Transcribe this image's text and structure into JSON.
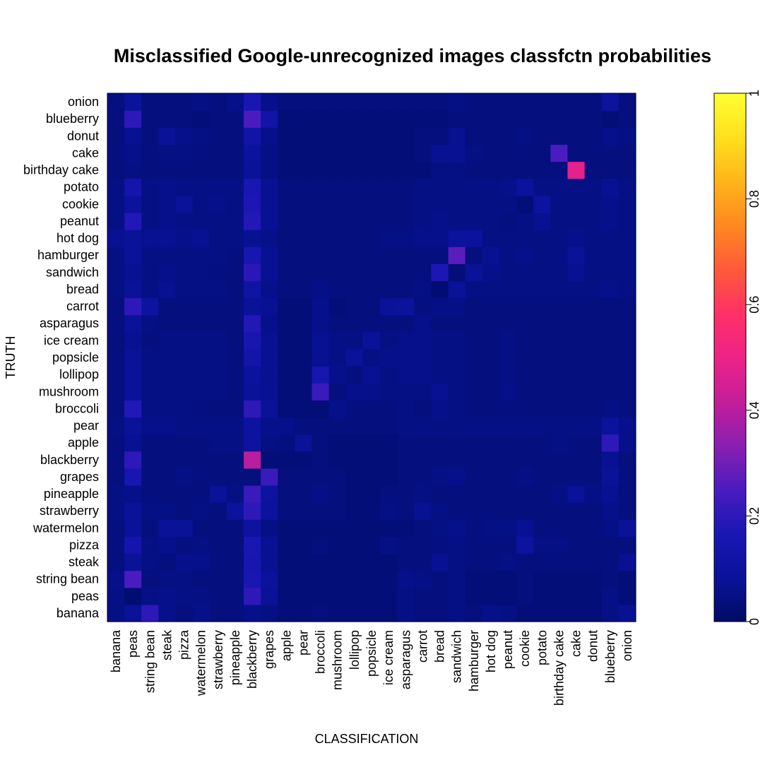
{
  "chart_data": {
    "type": "heatmap",
    "title": "Misclassified Google-unrecognized images classfctn probabilities",
    "xlabel": "CLASSIFICATION",
    "ylabel": "TRUTH",
    "x_categories": [
      "banana",
      "peas",
      "string bean",
      "steak",
      "pizza",
      "watermelon",
      "strawberry",
      "pineapple",
      "blackberry",
      "grapes",
      "apple",
      "pear",
      "broccoli",
      "mushroom",
      "lollipop",
      "popsicle",
      "ice cream",
      "asparagus",
      "carrot",
      "bread",
      "sandwich",
      "hamburger",
      "hot dog",
      "peanut",
      "cookie",
      "potato",
      "birthday cake",
      "cake",
      "donut",
      "blueberry",
      "onion"
    ],
    "y_categories": [
      "banana",
      "peas",
      "string bean",
      "steak",
      "pizza",
      "watermelon",
      "strawberry",
      "pineapple",
      "grapes",
      "blackberry",
      "apple",
      "pear",
      "broccoli",
      "mushroom",
      "lollipop",
      "popsicle",
      "ice cream",
      "asparagus",
      "carrot",
      "bread",
      "sandwich",
      "hamburger",
      "hot dog",
      "peanut",
      "cookie",
      "potato",
      "birthday cake",
      "cake",
      "donut",
      "blueberry",
      "onion"
    ],
    "values": [
      [
        0.05,
        0.08,
        0.2,
        0.06,
        0.04,
        0.06,
        0.04,
        0.04,
        0.06,
        0.05,
        0.03,
        0.03,
        0.04,
        0.03,
        0.03,
        0.03,
        0.03,
        0.05,
        0.04,
        0.04,
        0.05,
        0.04,
        0.06,
        0.05,
        0.03,
        0.03,
        0.03,
        0.03,
        0.03,
        0.05,
        0.07
      ],
      [
        0.05,
        0.02,
        0.05,
        0.06,
        0.05,
        0.05,
        0.04,
        0.04,
        0.2,
        0.08,
        0.03,
        0.03,
        0.03,
        0.03,
        0.03,
        0.03,
        0.03,
        0.05,
        0.04,
        0.04,
        0.05,
        0.03,
        0.03,
        0.03,
        0.04,
        0.03,
        0.03,
        0.03,
        0.03,
        0.05,
        0.03
      ],
      [
        0.06,
        0.25,
        0.04,
        0.05,
        0.05,
        0.04,
        0.04,
        0.04,
        0.16,
        0.09,
        0.03,
        0.03,
        0.03,
        0.03,
        0.03,
        0.03,
        0.03,
        0.06,
        0.05,
        0.04,
        0.05,
        0.03,
        0.03,
        0.03,
        0.04,
        0.03,
        0.03,
        0.03,
        0.03,
        0.04,
        0.03
      ],
      [
        0.04,
        0.08,
        0.05,
        0.04,
        0.06,
        0.06,
        0.04,
        0.04,
        0.15,
        0.07,
        0.03,
        0.03,
        0.03,
        0.03,
        0.03,
        0.03,
        0.03,
        0.04,
        0.04,
        0.07,
        0.05,
        0.04,
        0.04,
        0.05,
        0.04,
        0.04,
        0.04,
        0.04,
        0.04,
        0.04,
        0.07
      ],
      [
        0.04,
        0.14,
        0.05,
        0.06,
        0.04,
        0.05,
        0.04,
        0.04,
        0.16,
        0.07,
        0.03,
        0.03,
        0.04,
        0.03,
        0.03,
        0.03,
        0.05,
        0.04,
        0.04,
        0.04,
        0.05,
        0.04,
        0.04,
        0.04,
        0.1,
        0.05,
        0.05,
        0.04,
        0.04,
        0.04,
        0.04
      ],
      [
        0.04,
        0.08,
        0.04,
        0.08,
        0.08,
        0.04,
        0.04,
        0.04,
        0.1,
        0.05,
        0.03,
        0.03,
        0.03,
        0.03,
        0.03,
        0.03,
        0.03,
        0.03,
        0.04,
        0.05,
        0.06,
        0.04,
        0.05,
        0.05,
        0.07,
        0.04,
        0.04,
        0.04,
        0.04,
        0.05,
        0.08
      ],
      [
        0.05,
        0.08,
        0.05,
        0.05,
        0.04,
        0.05,
        0.04,
        0.09,
        0.2,
        0.09,
        0.04,
        0.04,
        0.04,
        0.04,
        0.03,
        0.03,
        0.05,
        0.04,
        0.07,
        0.05,
        0.04,
        0.04,
        0.04,
        0.04,
        0.04,
        0.04,
        0.04,
        0.04,
        0.04,
        0.06,
        0.04
      ],
      [
        0.05,
        0.06,
        0.04,
        0.04,
        0.04,
        0.04,
        0.08,
        0.05,
        0.22,
        0.1,
        0.04,
        0.04,
        0.05,
        0.04,
        0.03,
        0.03,
        0.04,
        0.04,
        0.05,
        0.04,
        0.04,
        0.04,
        0.04,
        0.04,
        0.04,
        0.04,
        0.05,
        0.08,
        0.05,
        0.07,
        0.04
      ],
      [
        0.04,
        0.15,
        0.04,
        0.04,
        0.05,
        0.04,
        0.04,
        0.04,
        0.04,
        0.22,
        0.04,
        0.04,
        0.04,
        0.04,
        0.03,
        0.03,
        0.03,
        0.04,
        0.04,
        0.05,
        0.06,
        0.04,
        0.04,
        0.04,
        0.05,
        0.04,
        0.04,
        0.04,
        0.04,
        0.08,
        0.04
      ],
      [
        0.04,
        0.2,
        0.04,
        0.04,
        0.04,
        0.04,
        0.04,
        0.04,
        0.4,
        0.03,
        0.03,
        0.03,
        0.04,
        0.03,
        0.03,
        0.03,
        0.03,
        0.04,
        0.04,
        0.04,
        0.04,
        0.04,
        0.04,
        0.04,
        0.04,
        0.04,
        0.04,
        0.04,
        0.04,
        0.07,
        0.04
      ],
      [
        0.04,
        0.07,
        0.04,
        0.04,
        0.04,
        0.04,
        0.05,
        0.05,
        0.1,
        0.05,
        0.04,
        0.08,
        0.04,
        0.03,
        0.03,
        0.03,
        0.03,
        0.04,
        0.04,
        0.04,
        0.04,
        0.04,
        0.04,
        0.04,
        0.04,
        0.04,
        0.05,
        0.04,
        0.04,
        0.2,
        0.06
      ],
      [
        0.05,
        0.08,
        0.06,
        0.06,
        0.05,
        0.05,
        0.05,
        0.05,
        0.1,
        0.06,
        0.06,
        0.04,
        0.04,
        0.04,
        0.04,
        0.04,
        0.04,
        0.05,
        0.05,
        0.05,
        0.05,
        0.05,
        0.05,
        0.05,
        0.05,
        0.05,
        0.05,
        0.05,
        0.05,
        0.09,
        0.06
      ],
      [
        0.04,
        0.18,
        0.05,
        0.05,
        0.05,
        0.04,
        0.04,
        0.04,
        0.2,
        0.08,
        0.03,
        0.03,
        0.03,
        0.06,
        0.04,
        0.04,
        0.04,
        0.05,
        0.04,
        0.06,
        0.05,
        0.04,
        0.04,
        0.04,
        0.04,
        0.04,
        0.04,
        0.04,
        0.04,
        0.05,
        0.04
      ],
      [
        0.04,
        0.08,
        0.05,
        0.05,
        0.05,
        0.05,
        0.05,
        0.04,
        0.08,
        0.07,
        0.03,
        0.03,
        0.22,
        0.04,
        0.06,
        0.06,
        0.05,
        0.05,
        0.05,
        0.07,
        0.05,
        0.04,
        0.04,
        0.06,
        0.04,
        0.04,
        0.04,
        0.04,
        0.04,
        0.04,
        0.04
      ],
      [
        0.04,
        0.08,
        0.05,
        0.05,
        0.05,
        0.05,
        0.05,
        0.04,
        0.09,
        0.07,
        0.03,
        0.03,
        0.15,
        0.06,
        0.04,
        0.07,
        0.05,
        0.06,
        0.06,
        0.05,
        0.05,
        0.04,
        0.04,
        0.05,
        0.04,
        0.04,
        0.04,
        0.04,
        0.04,
        0.04,
        0.04
      ],
      [
        0.04,
        0.08,
        0.05,
        0.05,
        0.05,
        0.05,
        0.05,
        0.04,
        0.13,
        0.07,
        0.03,
        0.03,
        0.07,
        0.05,
        0.08,
        0.05,
        0.06,
        0.06,
        0.06,
        0.05,
        0.05,
        0.04,
        0.04,
        0.05,
        0.04,
        0.04,
        0.04,
        0.04,
        0.04,
        0.04,
        0.04
      ],
      [
        0.04,
        0.07,
        0.04,
        0.05,
        0.05,
        0.05,
        0.05,
        0.04,
        0.15,
        0.07,
        0.03,
        0.03,
        0.07,
        0.05,
        0.05,
        0.08,
        0.05,
        0.06,
        0.06,
        0.05,
        0.05,
        0.04,
        0.04,
        0.05,
        0.04,
        0.04,
        0.04,
        0.04,
        0.04,
        0.04,
        0.04
      ],
      [
        0.04,
        0.08,
        0.05,
        0.04,
        0.04,
        0.04,
        0.04,
        0.04,
        0.18,
        0.06,
        0.03,
        0.03,
        0.06,
        0.04,
        0.04,
        0.04,
        0.04,
        0.04,
        0.06,
        0.04,
        0.04,
        0.04,
        0.04,
        0.04,
        0.04,
        0.04,
        0.04,
        0.04,
        0.04,
        0.04,
        0.04
      ],
      [
        0.04,
        0.2,
        0.1,
        0.04,
        0.04,
        0.04,
        0.04,
        0.04,
        0.08,
        0.07,
        0.03,
        0.03,
        0.06,
        0.03,
        0.04,
        0.04,
        0.08,
        0.09,
        0.04,
        0.05,
        0.05,
        0.04,
        0.04,
        0.04,
        0.04,
        0.04,
        0.04,
        0.04,
        0.04,
        0.04,
        0.04
      ],
      [
        0.05,
        0.08,
        0.05,
        0.07,
        0.05,
        0.05,
        0.05,
        0.04,
        0.11,
        0.06,
        0.04,
        0.04,
        0.05,
        0.04,
        0.04,
        0.04,
        0.04,
        0.04,
        0.05,
        0.02,
        0.08,
        0.05,
        0.05,
        0.05,
        0.05,
        0.05,
        0.05,
        0.05,
        0.05,
        0.06,
        0.05
      ],
      [
        0.05,
        0.07,
        0.05,
        0.06,
        0.05,
        0.05,
        0.04,
        0.04,
        0.19,
        0.07,
        0.04,
        0.04,
        0.04,
        0.04,
        0.04,
        0.04,
        0.04,
        0.04,
        0.04,
        0.17,
        0.03,
        0.08,
        0.06,
        0.05,
        0.05,
        0.05,
        0.05,
        0.07,
        0.05,
        0.05,
        0.05
      ],
      [
        0.05,
        0.08,
        0.05,
        0.05,
        0.05,
        0.05,
        0.05,
        0.04,
        0.15,
        0.07,
        0.04,
        0.04,
        0.04,
        0.04,
        0.04,
        0.04,
        0.04,
        0.04,
        0.04,
        0.04,
        0.27,
        0.04,
        0.07,
        0.05,
        0.06,
        0.05,
        0.05,
        0.08,
        0.05,
        0.05,
        0.05
      ],
      [
        0.07,
        0.08,
        0.07,
        0.07,
        0.06,
        0.07,
        0.05,
        0.05,
        0.07,
        0.06,
        0.04,
        0.04,
        0.04,
        0.04,
        0.04,
        0.04,
        0.05,
        0.05,
        0.06,
        0.06,
        0.09,
        0.09,
        0.05,
        0.05,
        0.05,
        0.05,
        0.05,
        0.06,
        0.05,
        0.05,
        0.05
      ],
      [
        0.05,
        0.18,
        0.05,
        0.06,
        0.05,
        0.05,
        0.05,
        0.05,
        0.18,
        0.07,
        0.04,
        0.04,
        0.04,
        0.04,
        0.04,
        0.04,
        0.04,
        0.04,
        0.05,
        0.06,
        0.05,
        0.05,
        0.05,
        0.04,
        0.05,
        0.07,
        0.05,
        0.05,
        0.05,
        0.06,
        0.05
      ],
      [
        0.05,
        0.09,
        0.05,
        0.06,
        0.08,
        0.05,
        0.06,
        0.05,
        0.17,
        0.07,
        0.04,
        0.04,
        0.04,
        0.04,
        0.04,
        0.04,
        0.04,
        0.04,
        0.05,
        0.05,
        0.05,
        0.05,
        0.05,
        0.05,
        0.03,
        0.1,
        0.05,
        0.05,
        0.05,
        0.06,
        0.05
      ],
      [
        0.05,
        0.14,
        0.05,
        0.06,
        0.05,
        0.05,
        0.05,
        0.05,
        0.16,
        0.07,
        0.04,
        0.04,
        0.04,
        0.04,
        0.04,
        0.04,
        0.04,
        0.04,
        0.05,
        0.05,
        0.05,
        0.05,
        0.05,
        0.06,
        0.09,
        0.05,
        0.05,
        0.05,
        0.05,
        0.07,
        0.05
      ],
      [
        0.04,
        0.05,
        0.04,
        0.04,
        0.04,
        0.04,
        0.04,
        0.04,
        0.08,
        0.05,
        0.03,
        0.03,
        0.03,
        0.03,
        0.03,
        0.03,
        0.03,
        0.03,
        0.03,
        0.05,
        0.05,
        0.04,
        0.04,
        0.04,
        0.04,
        0.04,
        0.04,
        0.48,
        0.04,
        0.04,
        0.04
      ],
      [
        0.04,
        0.06,
        0.04,
        0.05,
        0.05,
        0.04,
        0.04,
        0.04,
        0.09,
        0.05,
        0.03,
        0.03,
        0.03,
        0.03,
        0.03,
        0.03,
        0.03,
        0.03,
        0.04,
        0.07,
        0.07,
        0.05,
        0.04,
        0.04,
        0.04,
        0.04,
        0.25,
        0.04,
        0.04,
        0.04,
        0.04
      ],
      [
        0.04,
        0.07,
        0.04,
        0.08,
        0.06,
        0.05,
        0.04,
        0.04,
        0.12,
        0.06,
        0.03,
        0.03,
        0.03,
        0.03,
        0.03,
        0.03,
        0.03,
        0.03,
        0.04,
        0.04,
        0.07,
        0.04,
        0.04,
        0.04,
        0.05,
        0.04,
        0.04,
        0.04,
        0.04,
        0.06,
        0.05
      ],
      [
        0.04,
        0.2,
        0.04,
        0.04,
        0.04,
        0.03,
        0.04,
        0.04,
        0.25,
        0.12,
        0.03,
        0.03,
        0.03,
        0.03,
        0.03,
        0.03,
        0.03,
        0.03,
        0.03,
        0.03,
        0.04,
        0.04,
        0.04,
        0.04,
        0.04,
        0.04,
        0.04,
        0.04,
        0.04,
        0.03,
        0.04
      ],
      [
        0.04,
        0.09,
        0.04,
        0.04,
        0.04,
        0.05,
        0.04,
        0.06,
        0.16,
        0.06,
        0.04,
        0.04,
        0.04,
        0.04,
        0.04,
        0.04,
        0.04,
        0.04,
        0.04,
        0.04,
        0.05,
        0.04,
        0.04,
        0.04,
        0.04,
        0.04,
        0.04,
        0.04,
        0.04,
        0.1,
        0.04
      ]
    ],
    "zlim": [
      0,
      1
    ],
    "colorbar_ticks": [
      "0",
      "0.2",
      "0.4",
      "0.6",
      "0.8",
      "1"
    ],
    "colormap": [
      "#000c66",
      "#0a1299",
      "#1a17b4",
      "#4a1cbf",
      "#8a1fb0",
      "#c41e99",
      "#ee2288",
      "#ff3066",
      "#ff5a3a",
      "#ff8820",
      "#ffb51a",
      "#ffe01c",
      "#ffff33"
    ]
  }
}
